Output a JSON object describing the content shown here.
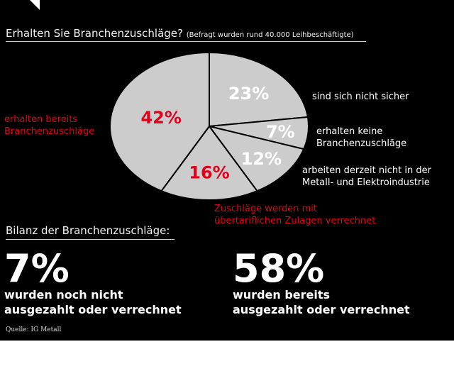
{
  "title": {
    "main": "Erhalten Sie Branchenzuschläge?",
    "sub": "(Befragt wurden rund 40.000 Leihbeschäftigte)"
  },
  "chart_data": {
    "type": "pie",
    "slices": [
      {
        "value": 23,
        "label": "23%",
        "description": [
          "sind sich nicht sicher"
        ],
        "highlight": false
      },
      {
        "value": 7,
        "label": "7%",
        "description": [
          "erhalten keine",
          "Branchenzuschläge"
        ],
        "highlight": false
      },
      {
        "value": 12,
        "label": "12%",
        "description": [
          "arbeiten derzeit nicht in der",
          "Metall- und Elektroindustrie"
        ],
        "highlight": false
      },
      {
        "value": 16,
        "label": "16%",
        "description": [
          "Zuschläge werden mit",
          "übertariflichen Zulagen verrechnet"
        ],
        "highlight": true
      },
      {
        "value": 42,
        "label": "42%",
        "description": [
          "erhalten bereits",
          "Branchenzuschläge"
        ],
        "highlight": true
      }
    ]
  },
  "summary": {
    "heading": "Bilanz der Branchenzuschläge:",
    "left": {
      "value": "7%",
      "line1": "wurden noch nicht",
      "line2": "ausgezahlt oder verrechnet"
    },
    "right": {
      "value": "58%",
      "line1": "wurden bereits",
      "line2": "ausgezahlt oder verrechnet"
    }
  },
  "source": "Quelle: IG Metall",
  "colors": {
    "background": "#000000",
    "slice": "#cccccc",
    "slice_border": "#000000",
    "highlight": "#e2001a",
    "text": "#ffffff"
  }
}
